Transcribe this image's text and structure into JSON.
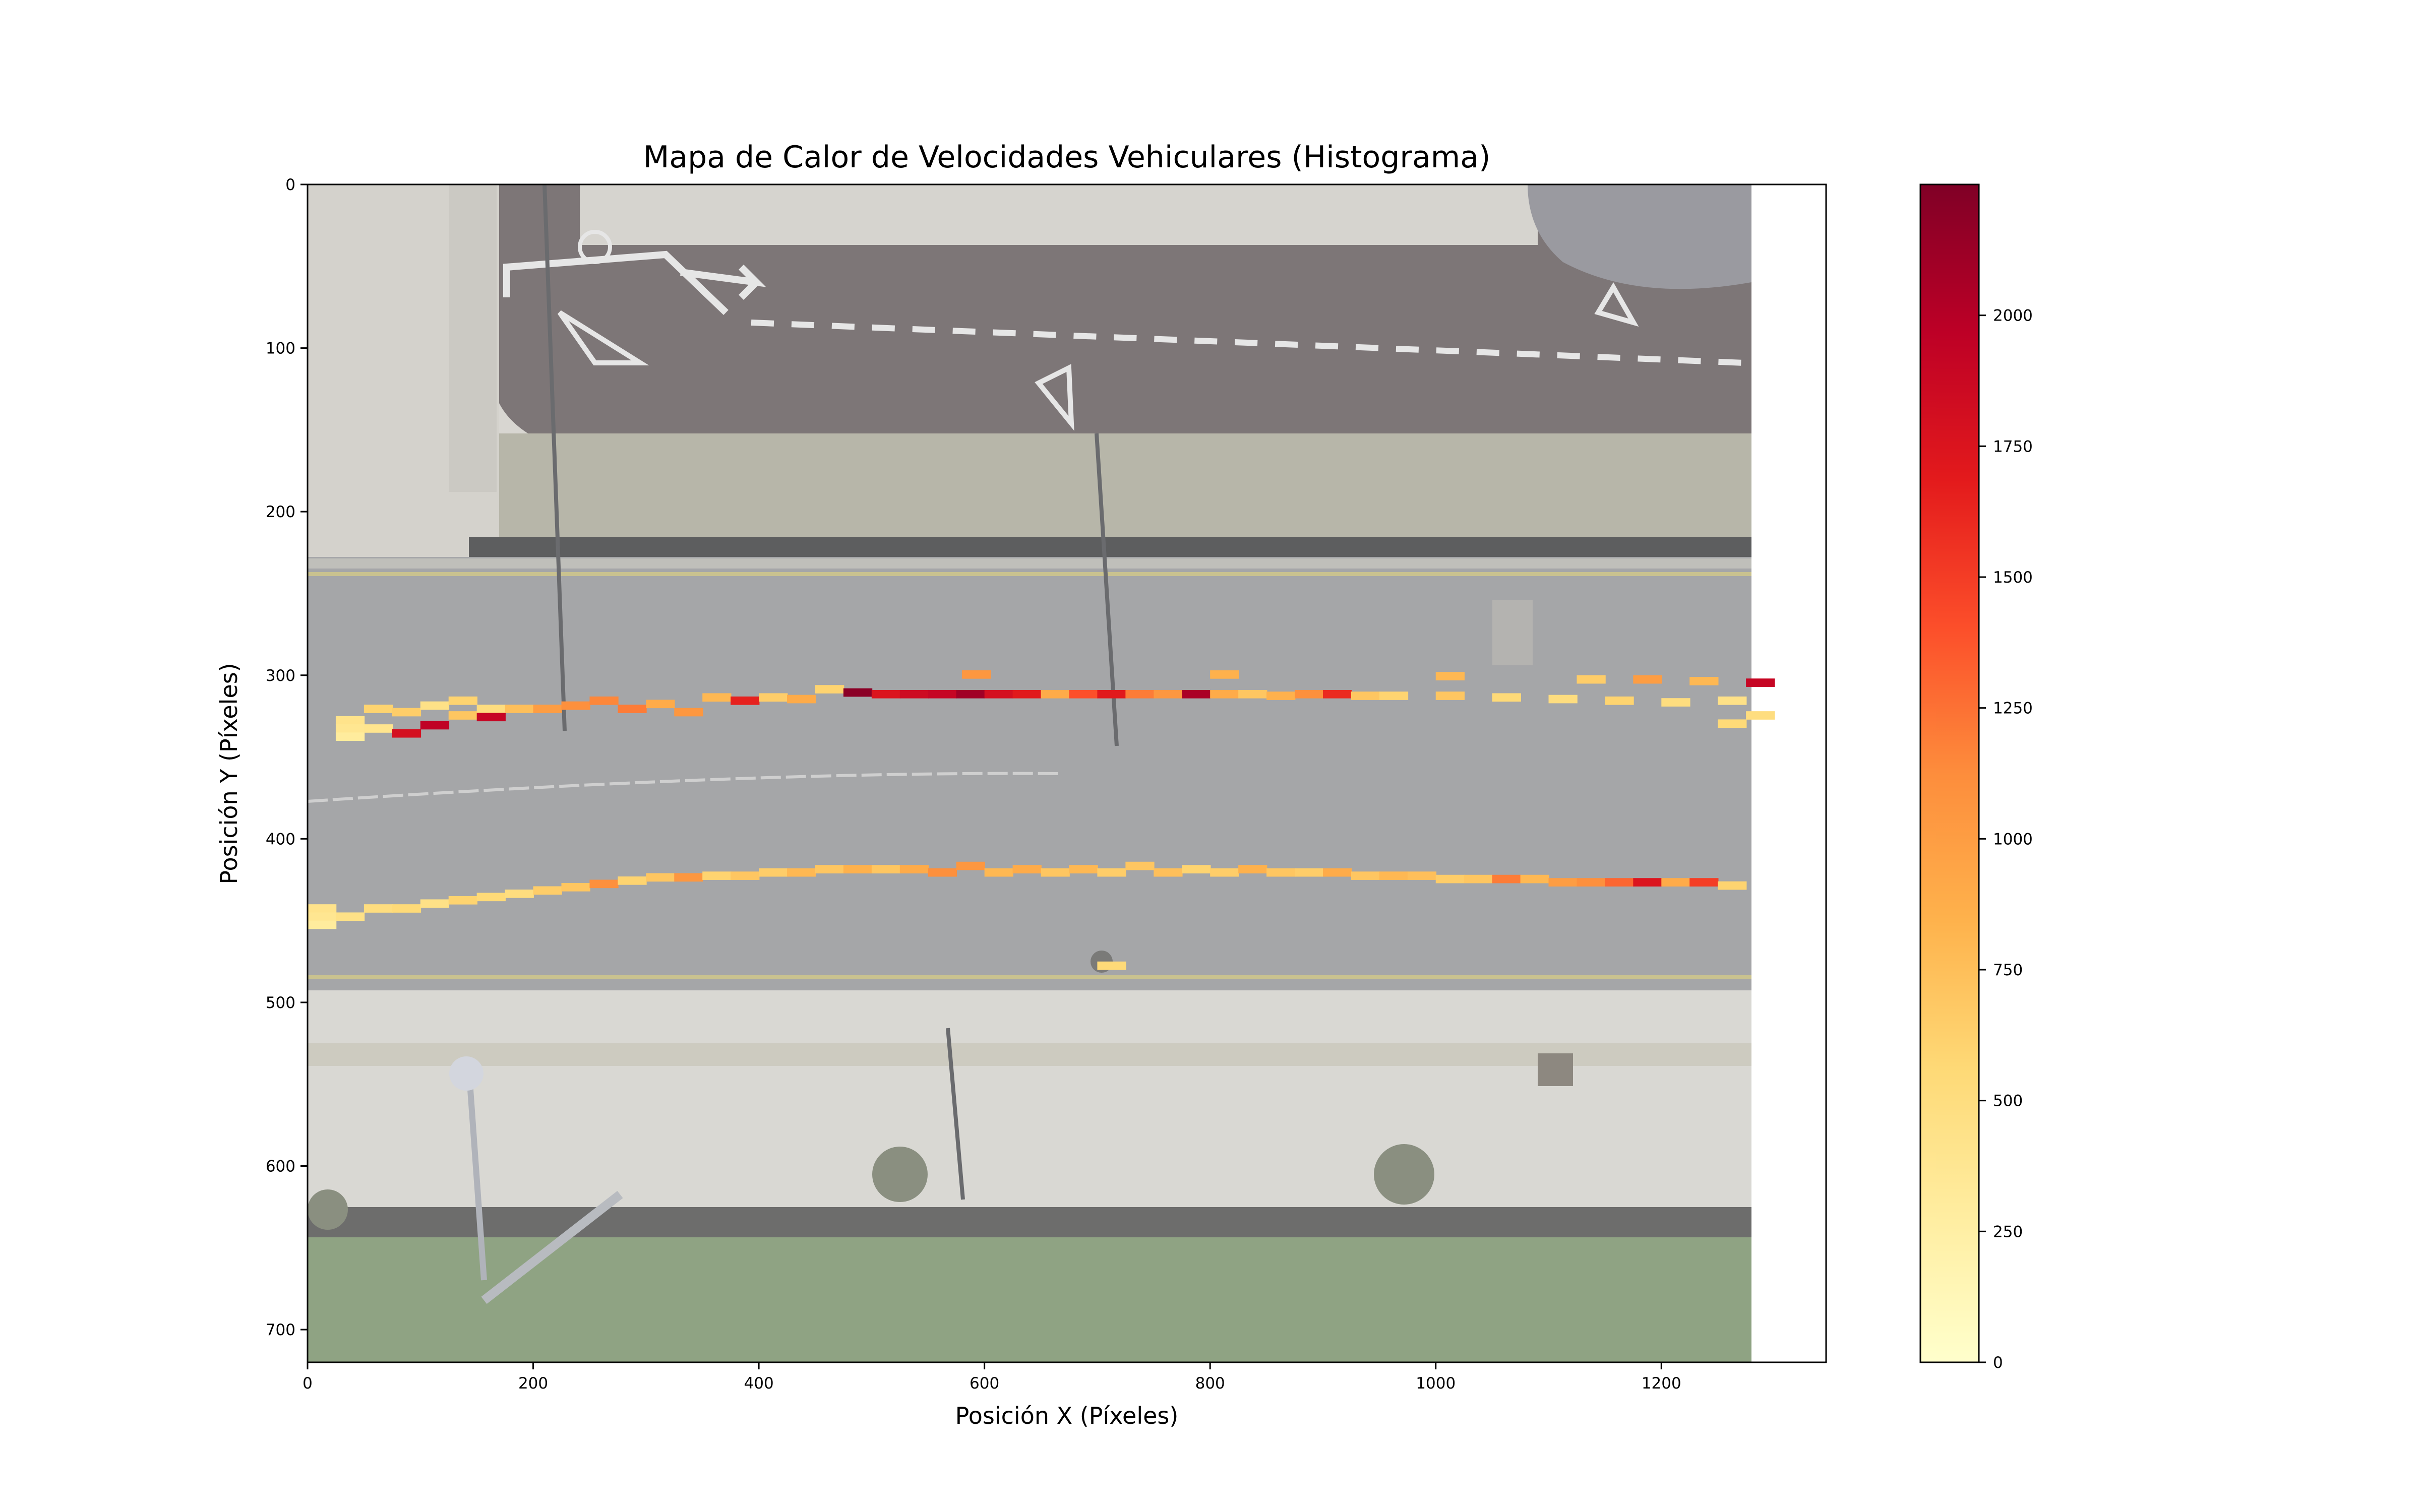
{
  "chart_data": {
    "type": "heatmap",
    "title": "Mapa de Calor de Velocidades Vehiculares (Histograma)",
    "xlabel": "Posición X (Píxeles)",
    "ylabel": "Posición Y (Píxeles)",
    "xlim": [
      0,
      1346
    ],
    "ylim": [
      720,
      0
    ],
    "xticks": [
      0,
      200,
      400,
      600,
      800,
      1000,
      1200
    ],
    "yticks": [
      0,
      100,
      200,
      300,
      400,
      500,
      600,
      700
    ],
    "background_image_extent": [
      0,
      1280,
      720,
      0
    ],
    "colormap": "YlOrRd",
    "colorbar": {
      "min": 0,
      "max": 2250,
      "ticks": [
        0,
        250,
        500,
        750,
        1000,
        1250,
        1500,
        1750,
        2000
      ]
    },
    "bin_size": [
      25.6,
      5.14
    ],
    "bins": [
      [
        0,
        440,
        420
      ],
      [
        0,
        445,
        380
      ],
      [
        0,
        450,
        300
      ],
      [
        25,
        325,
        420
      ],
      [
        25,
        330,
        380
      ],
      [
        25,
        335,
        300
      ],
      [
        50,
        318,
        600
      ],
      [
        50,
        330,
        400
      ],
      [
        75,
        320,
        650
      ],
      [
        75,
        333,
        1800
      ],
      [
        100,
        316,
        450
      ],
      [
        100,
        328,
        1950
      ],
      [
        125,
        313,
        600
      ],
      [
        125,
        322,
        700
      ],
      [
        150,
        318,
        500
      ],
      [
        150,
        323,
        1900
      ],
      [
        175,
        318,
        750
      ],
      [
        200,
        318,
        1000
      ],
      [
        225,
        316,
        1100
      ],
      [
        250,
        313,
        1150
      ],
      [
        275,
        318,
        1200
      ],
      [
        300,
        315,
        900
      ],
      [
        325,
        320,
        1050
      ],
      [
        350,
        311,
        800
      ],
      [
        375,
        313,
        1650
      ],
      [
        400,
        311,
        650
      ],
      [
        425,
        312,
        900
      ],
      [
        450,
        306,
        600
      ],
      [
        475,
        308,
        2200
      ],
      [
        500,
        309,
        1750
      ],
      [
        525,
        309,
        1850
      ],
      [
        550,
        309,
        1900
      ],
      [
        575,
        309,
        2100
      ],
      [
        600,
        309,
        1800
      ],
      [
        625,
        309,
        1700
      ],
      [
        650,
        309,
        900
      ],
      [
        675,
        309,
        1400
      ],
      [
        700,
        309,
        1700
      ],
      [
        725,
        309,
        1200
      ],
      [
        750,
        309,
        1050
      ],
      [
        775,
        309,
        2050
      ],
      [
        800,
        309,
        900
      ],
      [
        825,
        309,
        700
      ],
      [
        850,
        310,
        850
      ],
      [
        875,
        309,
        1100
      ],
      [
        900,
        309,
        1600
      ],
      [
        925,
        310,
        700
      ],
      [
        950,
        310,
        600
      ],
      [
        1000,
        310,
        700
      ],
      [
        1050,
        311,
        550
      ],
      [
        1100,
        312,
        500
      ],
      [
        1150,
        313,
        600
      ],
      [
        1200,
        314,
        500
      ],
      [
        1250,
        313,
        450
      ],
      [
        1275,
        302,
        1900
      ],
      [
        1250,
        327,
        550
      ],
      [
        1275,
        322,
        500
      ],
      [
        580,
        297,
        1050
      ],
      [
        800,
        297,
        850
      ],
      [
        1000,
        298,
        800
      ],
      [
        1125,
        300,
        650
      ],
      [
        1175,
        300,
        1000
      ],
      [
        1225,
        301,
        800
      ],
      [
        25,
        445,
        450
      ],
      [
        50,
        440,
        500
      ],
      [
        75,
        440,
        550
      ],
      [
        100,
        437,
        450
      ],
      [
        125,
        435,
        600
      ],
      [
        150,
        433,
        550
      ],
      [
        175,
        431,
        500
      ],
      [
        200,
        429,
        650
      ],
      [
        225,
        427,
        700
      ],
      [
        250,
        425,
        1100
      ],
      [
        275,
        423,
        600
      ],
      [
        300,
        421,
        700
      ],
      [
        325,
        421,
        1050
      ],
      [
        350,
        420,
        600
      ],
      [
        375,
        420,
        700
      ],
      [
        400,
        418,
        650
      ],
      [
        425,
        418,
        800
      ],
      [
        450,
        416,
        700
      ],
      [
        475,
        416,
        850
      ],
      [
        500,
        416,
        700
      ],
      [
        525,
        416,
        900
      ],
      [
        550,
        418,
        1100
      ],
      [
        575,
        414,
        1050
      ],
      [
        600,
        418,
        800
      ],
      [
        625,
        416,
        900
      ],
      [
        650,
        418,
        700
      ],
      [
        675,
        416,
        800
      ],
      [
        700,
        418,
        650
      ],
      [
        725,
        414,
        700
      ],
      [
        750,
        418,
        750
      ],
      [
        775,
        416,
        600
      ],
      [
        800,
        418,
        650
      ],
      [
        825,
        416,
        850
      ],
      [
        850,
        418,
        700
      ],
      [
        875,
        418,
        650
      ],
      [
        900,
        418,
        900
      ],
      [
        925,
        420,
        700
      ],
      [
        950,
        420,
        800
      ],
      [
        975,
        420,
        750
      ],
      [
        1000,
        422,
        650
      ],
      [
        1025,
        422,
        700
      ],
      [
        1050,
        422,
        1200
      ],
      [
        1075,
        422,
        800
      ],
      [
        1100,
        424,
        1000
      ],
      [
        1125,
        424,
        1100
      ],
      [
        1150,
        424,
        1300
      ],
      [
        1175,
        424,
        1750
      ],
      [
        1200,
        424,
        900
      ],
      [
        1225,
        424,
        1500
      ],
      [
        1250,
        426,
        600
      ],
      [
        700,
        475,
        550
      ]
    ]
  }
}
